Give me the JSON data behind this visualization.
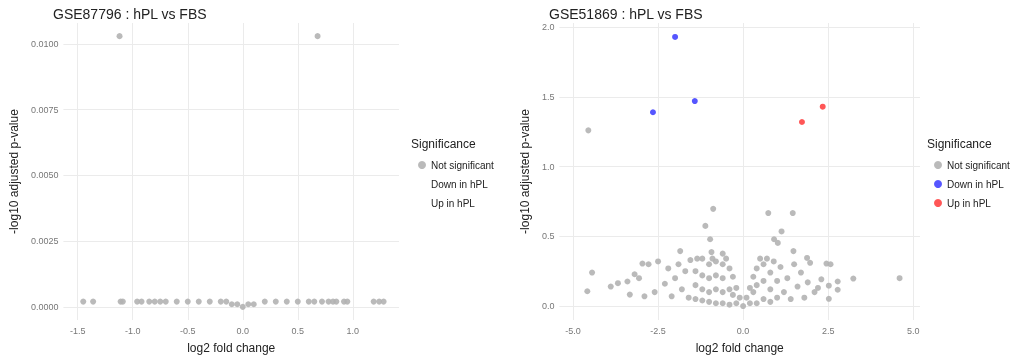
{
  "chart_data": [
    {
      "type": "scatter",
      "title": "GSE87796 : hPL vs FBS",
      "xlabel": "log2 fold change",
      "ylabel": "-log10 adjusted p-value",
      "legend_title": "Significance",
      "legend": "right",
      "grid": true,
      "marker": "circle",
      "xlim": [
        -1.63,
        1.42
      ],
      "ylim": [
        -0.0005,
        0.0108
      ],
      "xticks": [
        {
          "value": -1.5,
          "label": "-1.5"
        },
        {
          "value": -1,
          "label": "-1.0"
        },
        {
          "value": -0.5,
          "label": "-0.5"
        },
        {
          "value": 0,
          "label": "0.0"
        },
        {
          "value": 0.5,
          "label": "0.5"
        },
        {
          "value": 1,
          "label": "1.0"
        }
      ],
      "yticks": [
        {
          "value": 0,
          "label": "0.0000"
        },
        {
          "value": 0.0025,
          "label": "0.0025"
        },
        {
          "value": 0.005,
          "label": "0.0050"
        },
        {
          "value": 0.0075,
          "label": "0.0075"
        },
        {
          "value": 0.01,
          "label": "0.0100"
        }
      ],
      "series": [
        {
          "name": "Not significant",
          "color": "#b3b3b3",
          "x": [
            -1.12,
            0.68,
            -1.45,
            -1.36,
            -1.11,
            -1.09,
            -0.96,
            -0.92,
            -0.85,
            -0.8,
            -0.75,
            -0.7,
            -0.6,
            -0.5,
            -0.4,
            -0.3,
            -0.2,
            -0.15,
            -0.1,
            -0.05,
            0,
            0.05,
            0.1,
            0.2,
            0.3,
            0.4,
            0.5,
            0.6,
            0.65,
            0.72,
            0.78,
            0.82,
            0.85,
            0.92,
            0.95,
            1.19,
            1.24,
            1.28
          ],
          "values": [
            0.0103,
            0.0103,
            0.0002,
            0.0002,
            0.0002,
            0.0002,
            0.0002,
            0.0002,
            0.0002,
            0.0002,
            0.0002,
            0.0002,
            0.0002,
            0.0002,
            0.0002,
            0.0002,
            0.0002,
            0.0002,
            0.0001,
            0.0001,
            0,
            0.0001,
            0.0001,
            0.0002,
            0.0002,
            0.0002,
            0.0002,
            0.0002,
            0.0002,
            0.0002,
            0.0002,
            0.0002,
            0.0002,
            0.0002,
            0.0002,
            0.0002,
            0.0002,
            0.0002
          ]
        },
        {
          "name": "Down in hPL"
        },
        {
          "name": "Up in hPL"
        }
      ]
    },
    {
      "type": "scatter",
      "title": "GSE51869 : hPL vs FBS",
      "xlabel": "log2 fold change",
      "ylabel": "-log10 adjusted p-value",
      "legend_title": "Significance",
      "legend": "right",
      "grid": true,
      "marker": "circle",
      "xlim": [
        -5.4,
        5.2
      ],
      "ylim": [
        -0.1,
        2.03
      ],
      "xticks": [
        {
          "value": -5,
          "label": "-5.0"
        },
        {
          "value": -2.5,
          "label": "-2.5"
        },
        {
          "value": 0,
          "label": "0.0"
        },
        {
          "value": 2.5,
          "label": "2.5"
        },
        {
          "value": 5,
          "label": "5.0"
        }
      ],
      "yticks": [
        {
          "value": 0,
          "label": "0.0"
        },
        {
          "value": 0.5,
          "label": "0.5"
        },
        {
          "value": 1,
          "label": "1.0"
        },
        {
          "value": 1.5,
          "label": "1.5"
        },
        {
          "value": 2,
          "label": "2.0"
        }
      ],
      "series": [
        {
          "name": "Not significant",
          "color": "#b3b3b3",
          "x": [
            -4.55,
            -4.58,
            -4.44,
            -3.89,
            -3.68,
            -3.4,
            -3.33,
            -3.19,
            -3.06,
            -2.96,
            -2.78,
            -1.85,
            -1.11,
            -0.97,
            -0.93,
            -0.88,
            -0.6,
            0.74,
            0.91,
            1.02,
            1.13,
            1.46,
            1.48,
            1.88,
            1.97,
            2.3,
            2.45,
            2.57,
            2.52,
            2.52,
            2.78,
            2.78,
            3.24,
            4.6,
            -2.9,
            -2.6,
            -2.5,
            -2.3,
            -2.2,
            -2.1,
            -2.0,
            -1.9,
            -1.8,
            -1.7,
            -1.6,
            -1.55,
            -1.4,
            -1.4,
            -1.4,
            -1.35,
            -1.2,
            -1.2,
            -1.2,
            -1.2,
            -1.0,
            -1.0,
            -1.0,
            -1.0,
            -0.9,
            -0.8,
            -0.8,
            -0.8,
            -0.8,
            -0.6,
            -0.6,
            -0.6,
            -0.6,
            -0.5,
            -0.4,
            -0.4,
            -0.4,
            -0.3,
            -0.3,
            -0.2,
            -0.2,
            -0.1,
            0.0,
            0.1,
            0.2,
            0.2,
            0.3,
            0.3,
            0.4,
            0.4,
            0.4,
            0.5,
            0.6,
            0.6,
            0.6,
            0.7,
            0.8,
            0.8,
            0.8,
            0.9,
            1.0,
            1.0,
            1.1,
            1.2,
            1.3,
            1.4,
            1.5,
            1.6,
            1.7,
            1.8,
            1.9,
            2.1,
            2.2
          ],
          "values": [
            1.26,
            0.106,
            0.24,
            0.14,
            0.164,
            0.176,
            0.082,
            0.228,
            0.2,
            0.305,
            0.3,
            0.394,
            0.575,
            0.479,
            0.387,
            0.697,
            0.376,
            0.667,
            0.479,
            0.453,
            0.535,
            0.667,
            0.394,
            0.345,
            0.31,
            0.192,
            0.305,
            0.3,
            0.146,
            0.052,
            0.176,
            0.117,
            0.197,
            0.2,
            0.07,
            0.1,
            0.32,
            0.16,
            0.27,
            0.07,
            0.2,
            0.3,
            0.12,
            0.25,
            0.06,
            0.33,
            0.05,
            0.15,
            0.25,
            0.34,
            0.04,
            0.12,
            0.22,
            0.34,
            0.03,
            0.1,
            0.2,
            0.3,
            0.34,
            0.02,
            0.12,
            0.22,
            0.32,
            0.02,
            0.1,
            0.2,
            0.3,
            0.34,
            0.01,
            0.12,
            0.27,
            0.08,
            0.21,
            0.02,
            0.13,
            0.06,
            0.0,
            0.06,
            0.02,
            0.13,
            0.1,
            0.21,
            0.02,
            0.15,
            0.27,
            0.34,
            0.05,
            0.18,
            0.3,
            0.34,
            0.03,
            0.12,
            0.24,
            0.32,
            0.06,
            0.18,
            0.28,
            0.1,
            0.2,
            0.05,
            0.3,
            0.14,
            0.24,
            0.06,
            0.17,
            0.1,
            0.13
          ]
        },
        {
          "name": "Down in hPL",
          "color": "#4444ff",
          "x": [
            -2.0,
            -2.65,
            -1.42
          ],
          "values": [
            1.93,
            1.39,
            1.47
          ]
        },
        {
          "name": "Up in hPL",
          "color": "#ff4444",
          "x": [
            1.73,
            2.34
          ],
          "values": [
            1.32,
            1.43
          ]
        }
      ]
    }
  ]
}
